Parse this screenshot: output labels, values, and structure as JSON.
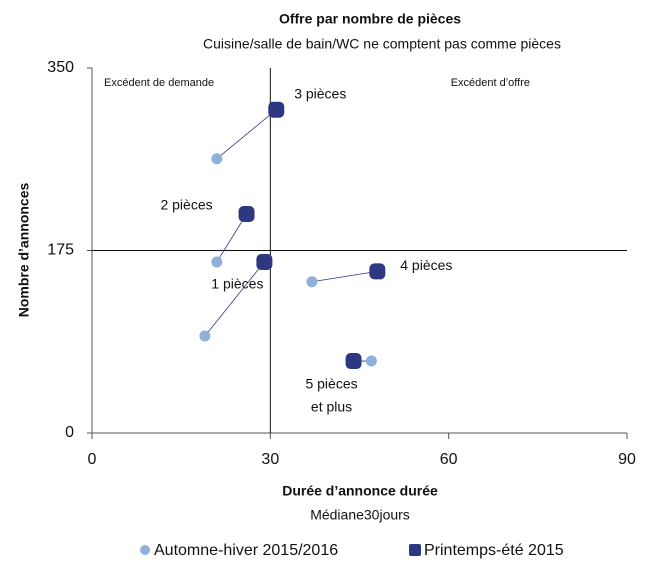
{
  "chart_data": {
    "type": "scatter",
    "title": "Offre par nombre de pièces",
    "subtitle": "Cuisine/salle de bain/WC ne comptent pas comme pièces",
    "x_label": [
      "Durée d’annonce  durée",
      "Médiane30jours"
    ],
    "y_label": "Nombre d’annonces",
    "annotations": [
      "Excédent de demande",
      "Excédent d’offre"
    ],
    "point_labels": [
      [
        "3 pièces"
      ],
      [
        "2 pièces"
      ],
      [
        "1 pièces"
      ],
      [
        "4 pièces"
      ],
      [
        "5 pièces",
        "et plus"
      ]
    ],
    "crosshair": {
      "x": 30,
      "y": 175
    },
    "series": [
      {
        "name": "Automne-hiver 2015/2016",
        "color": "#8fb0d9",
        "marker": "circle",
        "x": [
          21,
          21,
          19,
          37,
          47
        ],
        "values": [
          263,
          164,
          93,
          145,
          69
        ]
      },
      {
        "name": "Printemps-été 2015",
        "color": "#2e3880",
        "marker": "square",
        "x": [
          31,
          26,
          29,
          48,
          44
        ],
        "values": [
          310,
          210,
          164,
          155,
          69
        ]
      }
    ],
    "xlim": [
      0,
      90
    ],
    "xticks": [
      0,
      30,
      60,
      90
    ],
    "ylim": [
      0,
      350
    ],
    "yticks": [
      0,
      175,
      350
    ]
  }
}
